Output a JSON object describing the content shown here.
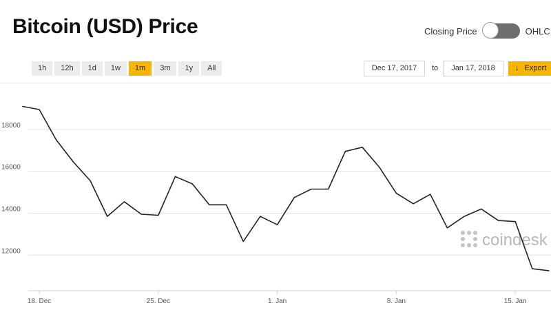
{
  "header": {
    "title": "Bitcoin (USD) Price",
    "toggle_left_label": "Closing Price",
    "toggle_right_label": "OHLC"
  },
  "ranges": [
    {
      "label": "1h",
      "active": false
    },
    {
      "label": "12h",
      "active": false
    },
    {
      "label": "1d",
      "active": false
    },
    {
      "label": "1w",
      "active": false
    },
    {
      "label": "1m",
      "active": true
    },
    {
      "label": "3m",
      "active": false
    },
    {
      "label": "1y",
      "active": false
    },
    {
      "label": "All",
      "active": false
    }
  ],
  "date_range": {
    "from": "Dec 17, 2017",
    "to_label": "to",
    "to": "Jan 17, 2018"
  },
  "export_label": "Export",
  "watermark": "coindesk",
  "colors": {
    "accent": "#f7b500",
    "line": "#222222",
    "grid": "#e3e3e3",
    "toggle": "#6d6d6d"
  },
  "chart_data": {
    "type": "line",
    "title": "Bitcoin (USD) Price",
    "xlabel": "",
    "ylabel": "",
    "x_tick_labels": [
      "18. Dec",
      "25. Dec",
      "1. Jan",
      "8. Jan",
      "15. Jan"
    ],
    "y_tick_values": [
      12000,
      14000,
      16000,
      18000
    ],
    "ylim": [
      10300,
      20200
    ],
    "grid": true,
    "x": [
      "2017-12-17",
      "2017-12-18",
      "2017-12-19",
      "2017-12-20",
      "2017-12-21",
      "2017-12-22",
      "2017-12-23",
      "2017-12-24",
      "2017-12-25",
      "2017-12-26",
      "2017-12-27",
      "2017-12-28",
      "2017-12-29",
      "2017-12-30",
      "2017-12-31",
      "2018-01-01",
      "2018-01-02",
      "2018-01-03",
      "2018-01-04",
      "2018-01-05",
      "2018-01-06",
      "2018-01-07",
      "2018-01-08",
      "2018-01-09",
      "2018-01-10",
      "2018-01-11",
      "2018-01-12",
      "2018-01-13",
      "2018-01-14",
      "2018-01-15",
      "2018-01-16",
      "2018-01-17"
    ],
    "series": [
      {
        "values": [
          19100,
          18950,
          17500,
          16450,
          15550,
          13850,
          14550,
          13950,
          13900,
          15750,
          15400,
          14400,
          14400,
          12650,
          13850,
          13450,
          14750,
          15150,
          15150,
          16950,
          17150,
          16200,
          14950,
          14450,
          14900,
          13300,
          13850,
          14200,
          13650,
          13600,
          11350,
          11250
        ]
      }
    ]
  }
}
